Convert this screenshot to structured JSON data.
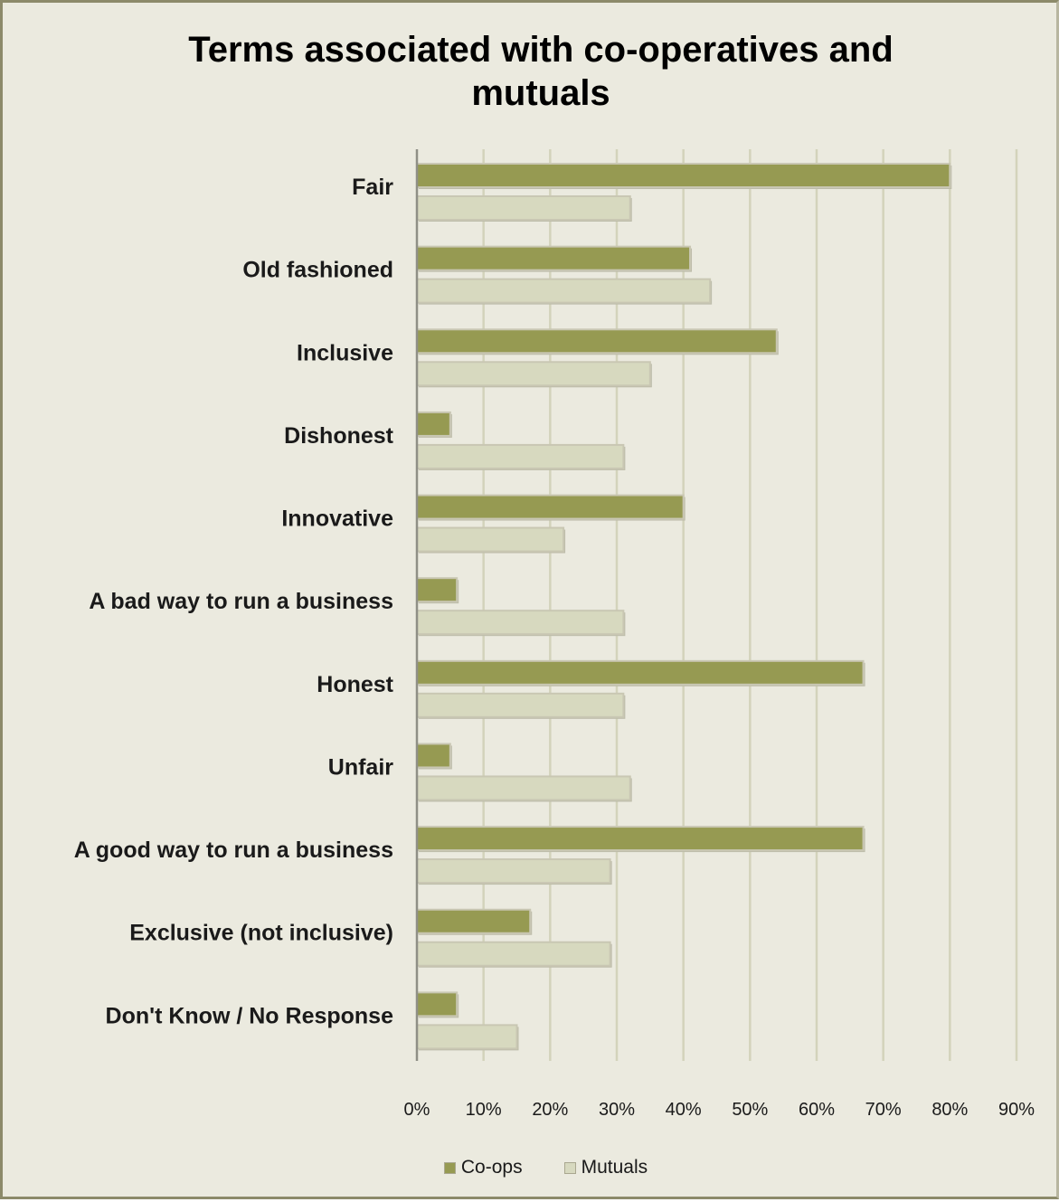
{
  "chart_data": {
    "type": "bar",
    "orientation": "horizontal",
    "title": "Terms associated with co-operatives and mutuals",
    "categories": [
      "Fair",
      "Old fashioned",
      "Inclusive",
      "Dishonest",
      "Innovative",
      "A bad way to run a business",
      "Honest",
      "Unfair",
      "A good way to run a business",
      "Exclusive (not inclusive)",
      "Don't Know / No Response"
    ],
    "series": [
      {
        "name": "Co-ops",
        "color": "#969a52",
        "values": [
          0.8,
          0.41,
          0.54,
          0.05,
          0.4,
          0.06,
          0.67,
          0.05,
          0.67,
          0.17,
          0.06
        ]
      },
      {
        "name": "Mutuals",
        "color": "#d7d9bf",
        "values": [
          0.32,
          0.44,
          0.35,
          0.31,
          0.22,
          0.31,
          0.31,
          0.32,
          0.29,
          0.29,
          0.15
        ]
      }
    ],
    "x_ticks": [
      "0%",
      "10%",
      "20%",
      "30%",
      "40%",
      "50%",
      "60%",
      "70%",
      "80%",
      "90%"
    ],
    "xlim": [
      0,
      0.9
    ],
    "xlabel": "",
    "ylabel": "",
    "grid": true,
    "legend_position": "bottom"
  }
}
